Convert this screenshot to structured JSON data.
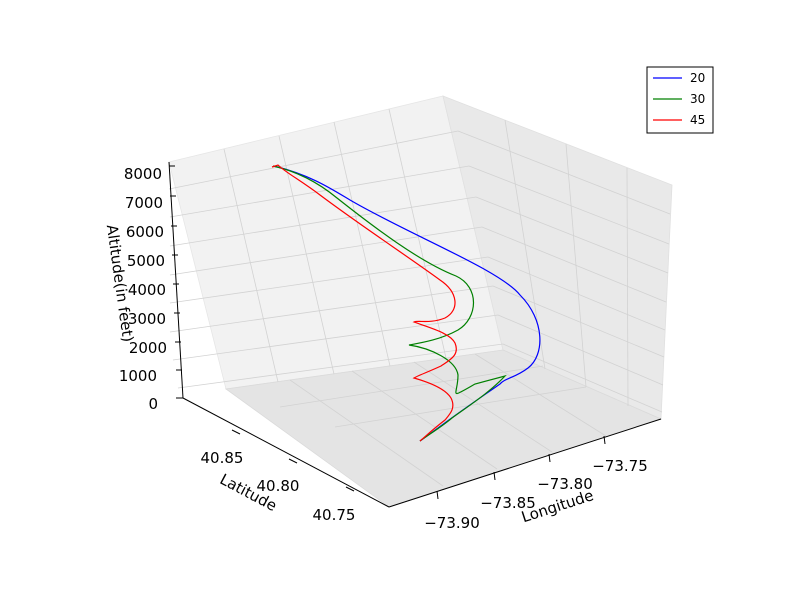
{
  "chart_data": {
    "type": "line",
    "projection": "3d",
    "xlabel": "Longitude",
    "ylabel": "Latitude",
    "zlabel": "Altitude(in feet)",
    "x_ticks": [
      "−73.90",
      "−73.85",
      "−73.80",
      "−73.75"
    ],
    "y_ticks": [
      "40.85",
      "40.80",
      "40.75"
    ],
    "z_ticks": [
      "0",
      "1000",
      "2000",
      "3000",
      "4000",
      "5000",
      "6000",
      "7000",
      "8000"
    ],
    "zlim": [
      0,
      8000
    ],
    "grid": true,
    "legend_position": "top-right",
    "series": [
      {
        "name": "20",
        "color": "#0000ff"
      },
      {
        "name": "30",
        "color": "#008000"
      },
      {
        "name": "45",
        "color": "#ff0000"
      }
    ]
  }
}
